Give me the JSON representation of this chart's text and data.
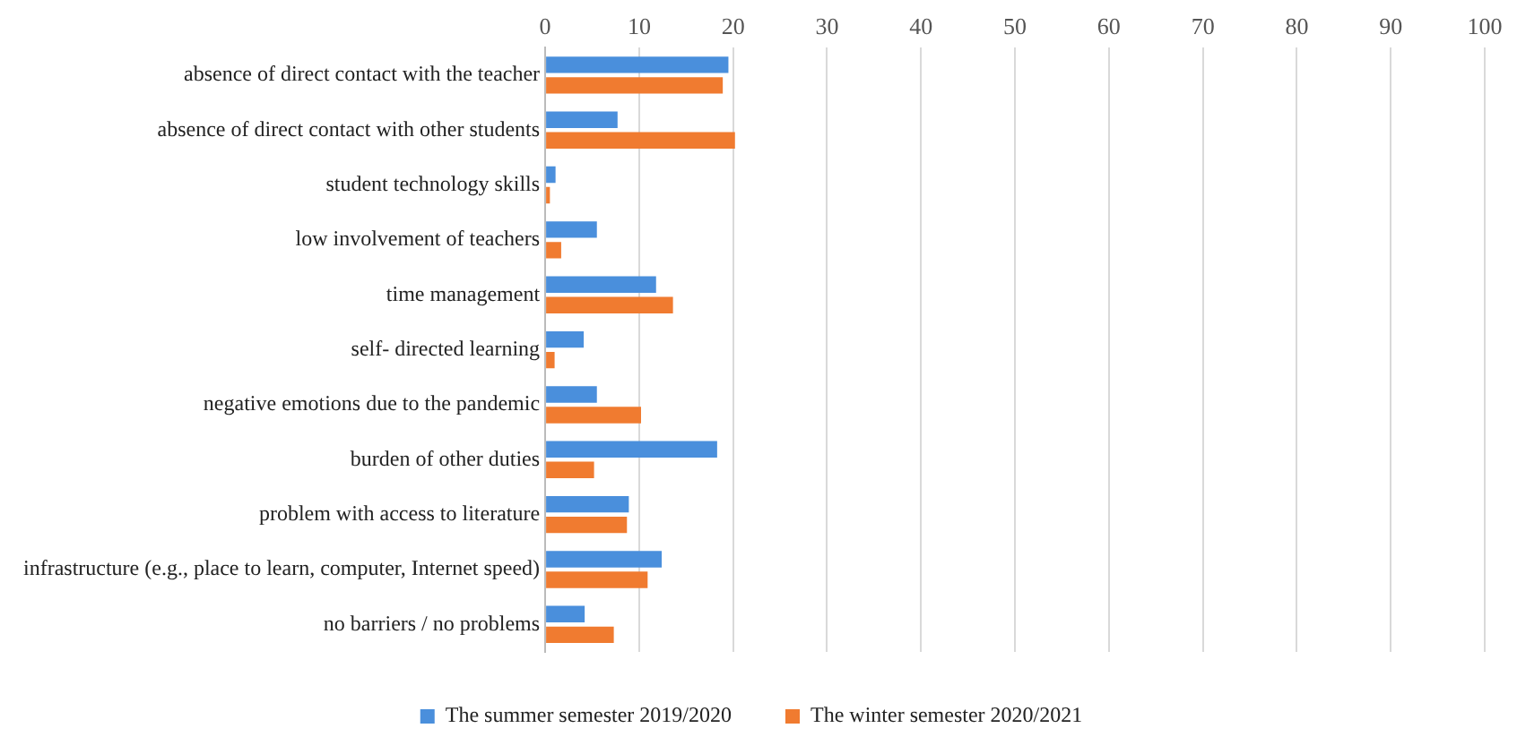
{
  "chart_data": {
    "type": "bar",
    "orientation": "horizontal",
    "categories": [
      "absence of direct contact with the teacher",
      "absence of direct contact with other students",
      "student technology skills",
      "low involvement of teachers",
      "time management",
      "self- directed learning",
      "negative emotions due to the pandemic",
      "burden of other duties",
      "problem with access to literature",
      "infrastructure (e.g., place to learn, computer, Internet speed)",
      "no barriers / no problems"
    ],
    "series": [
      {
        "name": "The summer semester 2019/2020",
        "color": "#4a8fdc",
        "values": [
          19.5,
          7.7,
          1.1,
          5.5,
          11.8,
          4.1,
          5.5,
          18.3,
          8.9,
          12.4,
          4.2
        ]
      },
      {
        "name": "The winter semester 2020/2021",
        "color": "#f07b30",
        "values": [
          18.9,
          20.2,
          0.5,
          1.7,
          13.6,
          1.0,
          10.2,
          5.2,
          8.7,
          10.9,
          7.3
        ]
      }
    ],
    "xlim": [
      0,
      100
    ],
    "xticks": [
      0,
      10,
      20,
      30,
      40,
      50,
      60,
      70,
      80,
      90,
      100
    ],
    "grid": "x",
    "legend": "bottom"
  }
}
